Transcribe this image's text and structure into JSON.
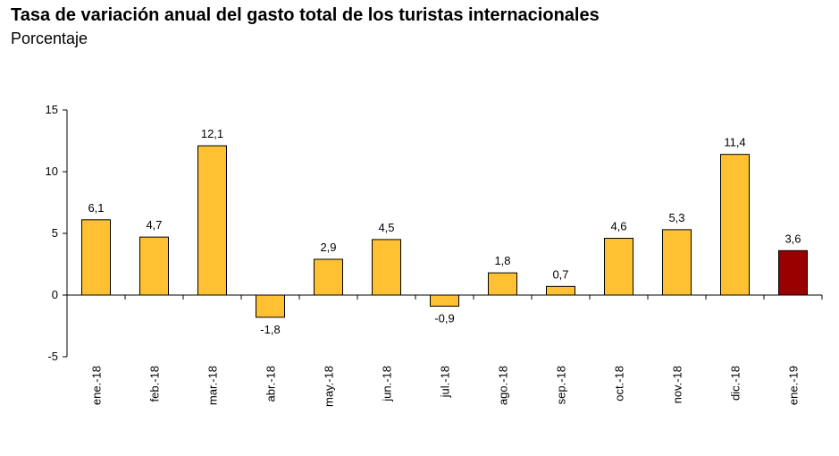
{
  "chart_data": {
    "type": "bar",
    "title": "Tasa de variación anual del gasto total de los turistas internacionales",
    "subtitle": "Porcentaje",
    "categories": [
      "ene.-18",
      "feb.-18",
      "mar.-18",
      "abr.-18",
      "may.-18",
      "jun.-18",
      "jul.-18",
      "ago.-18",
      "sep.-18",
      "oct.-18",
      "nov.-18",
      "dic.-18",
      "ene.-19"
    ],
    "values": [
      6.1,
      4.7,
      12.1,
      -1.8,
      2.9,
      4.5,
      -0.9,
      1.8,
      0.7,
      4.6,
      5.3,
      11.4,
      3.6
    ],
    "value_labels": [
      "6,1",
      "4,7",
      "12,1",
      "-1,8",
      "2,9",
      "4,5",
      "-0,9",
      "1,8",
      "0,7",
      "4,6",
      "5,3",
      "11,4",
      "3,6"
    ],
    "ylim": [
      -5,
      15
    ],
    "yticks": [
      -5,
      0,
      5,
      10,
      15
    ],
    "ytick_labels": [
      "-5",
      "0",
      "5",
      "10",
      "15"
    ],
    "xlabel": "",
    "ylabel": "",
    "grid": false,
    "legend": "none",
    "colors": {
      "bar": "#FFC131",
      "highlight_bar": "#990000",
      "bar_border": "#000000",
      "axis": "#000000"
    },
    "highlight_index": 12
  }
}
